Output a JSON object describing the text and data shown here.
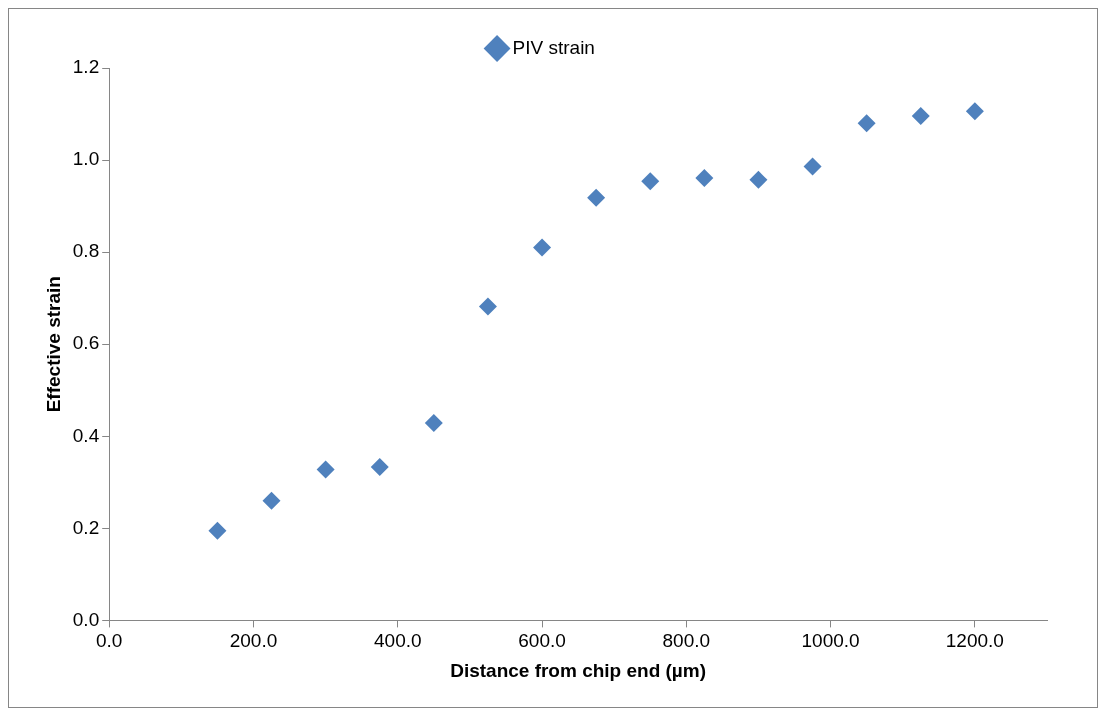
{
  "chart_data": {
    "type": "scatter",
    "xlabel": "Distance from chip end (µm)",
    "ylabel": "Effective strain",
    "x": [
      150,
      225,
      300,
      375,
      450,
      525,
      600,
      675,
      750,
      825,
      900,
      975,
      1050,
      1125,
      1200
    ],
    "series": [
      {
        "name": "PIV strain",
        "color": "#4f81bd",
        "values": [
          0.195,
          0.26,
          0.328,
          0.333,
          0.429,
          0.682,
          0.81,
          0.918,
          0.954,
          0.961,
          0.957,
          0.986,
          1.08,
          1.096,
          1.106
        ]
      }
    ],
    "xlim": [
      0,
      1300
    ],
    "xticks": [
      {
        "value": 0,
        "label": "0.0"
      },
      {
        "value": 200,
        "label": "200.0"
      },
      {
        "value": 400,
        "label": "400.0"
      },
      {
        "value": 600,
        "label": "600.0"
      },
      {
        "value": 800,
        "label": "800.0"
      },
      {
        "value": 1000,
        "label": "1000.0"
      },
      {
        "value": 1200,
        "label": "1200.0"
      }
    ],
    "ylim": [
      0,
      1.2
    ],
    "yticks": [
      {
        "value": 0,
        "label": "0.0"
      },
      {
        "value": 0.2,
        "label": "0.2"
      },
      {
        "value": 0.4,
        "label": "0.4"
      },
      {
        "value": 0.6,
        "label": "0.6"
      },
      {
        "value": 0.8,
        "label": "0.8"
      },
      {
        "value": 1.0,
        "label": "1.0"
      },
      {
        "value": 1.2,
        "label": "1.2"
      }
    ],
    "grid": false,
    "legend": "top",
    "marker": "diamond"
  }
}
